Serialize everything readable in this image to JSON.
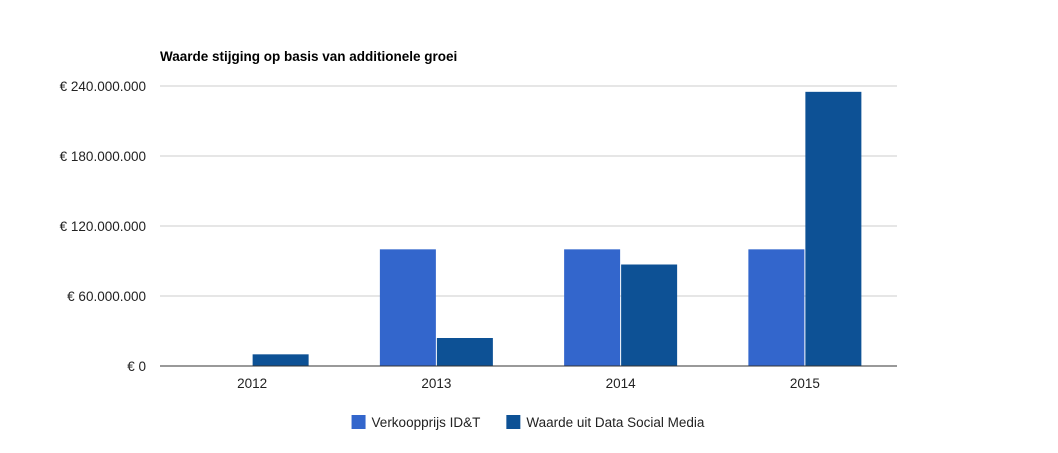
{
  "chart_data": {
    "type": "bar",
    "title": "Waarde stijging op basis van additionele groei",
    "xlabel": "",
    "ylabel": "",
    "categories": [
      "2012",
      "2013",
      "2014",
      "2015"
    ],
    "series": [
      {
        "name": "Verkoopprijs ID&T",
        "color": "#3366cc",
        "values": [
          0,
          100000000,
          100000000,
          100000000
        ]
      },
      {
        "name": "Waarde uit Data Social Media",
        "color": "#0d5195",
        "values": [
          10000000,
          24000000,
          87000000,
          235000000
        ]
      }
    ],
    "ylim": [
      0,
      240000000
    ],
    "yticks": [
      0,
      60000000,
      120000000,
      180000000,
      240000000
    ],
    "ytick_labels": [
      "€ 0",
      "€ 60.000.000",
      "€ 120.000.000",
      "€ 180.000.000",
      "€ 240.000.000"
    ],
    "grid": true,
    "legend_position": "bottom"
  }
}
